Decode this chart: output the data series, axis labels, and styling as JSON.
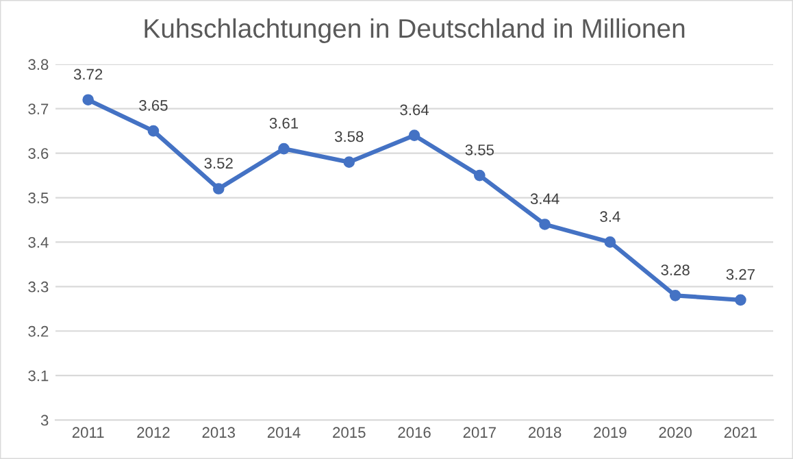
{
  "chart_data": {
    "type": "line",
    "title": "Kuhschlachtungen in Deutschland in Millionen",
    "categories": [
      "2011",
      "2012",
      "2013",
      "2014",
      "2015",
      "2016",
      "2017",
      "2018",
      "2019",
      "2020",
      "2021"
    ],
    "series": [
      {
        "color": "#4472c4",
        "values": [
          3.72,
          3.65,
          3.52,
          3.61,
          3.58,
          3.64,
          3.55,
          3.44,
          3.4,
          3.28,
          3.27
        ]
      }
    ],
    "ylim": [
      3,
      3.8
    ],
    "yticks": [
      3,
      3.1,
      3.2,
      3.3,
      3.4,
      3.5,
      3.6,
      3.7,
      3.8
    ],
    "grid": "y",
    "marker": "circle",
    "line_style": "solid",
    "data_labels": true,
    "legend": false
  }
}
